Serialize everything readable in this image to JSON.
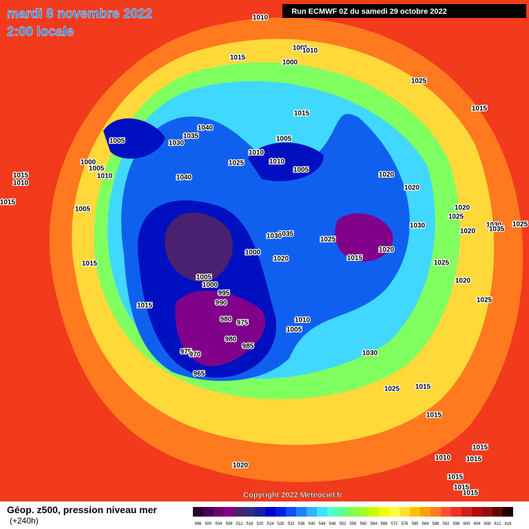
{
  "header": {
    "date": "mardi 8 novembre 2022",
    "time": "2:00 locale",
    "run": "Run ECMWF 0Z du samedi 29 octobre 2022"
  },
  "isobar_labels": [
    "1010",
    "1015",
    "1005",
    "1010",
    "1000",
    "1025",
    "1015",
    "1015",
    "1040",
    "1035",
    "1030",
    "1005",
    "1010",
    "1005",
    "1010",
    "1005",
    "1025",
    "1000",
    "1005",
    "1010",
    "1040",
    "1020",
    "1020",
    "1015",
    "1010",
    "1015",
    "1005",
    "1020",
    "1025",
    "1020",
    "1030",
    "1030",
    "1035",
    "1025",
    "1035",
    "1030",
    "1025",
    "1020",
    "1000",
    "1020",
    "1015",
    "1015",
    "1025",
    "1020",
    "1005",
    "1000",
    "995",
    "990",
    "1015",
    "1025",
    "980",
    "975",
    "1010",
    "1005",
    "980",
    "985",
    "975",
    "970",
    "965",
    "1030",
    "1025",
    "1015",
    "1015",
    "1015",
    "1010",
    "1015",
    "1020",
    "1015",
    "1015",
    "1015"
  ],
  "footer": {
    "copyright": "Copyright 2022 Meteociel.fr",
    "legend_title": "Géop. z500, pression niveau mer",
    "range": "(+240h)"
  },
  "color_scale": {
    "values": [
      496,
      500,
      504,
      508,
      512,
      516,
      520,
      524,
      528,
      532,
      536,
      540,
      544,
      548,
      552,
      556,
      560,
      564,
      568,
      572,
      576,
      580,
      584,
      588,
      592,
      596,
      600,
      604,
      608,
      612,
      616
    ],
    "colors": [
      "#2a0030",
      "#4b0050",
      "#6a006e",
      "#80008a",
      "#4a2070",
      "#2a3080",
      "#1a20a0",
      "#0000c8",
      "#0020e0",
      "#1050f0",
      "#2080ff",
      "#30b0ff",
      "#40e0ff",
      "#50ffd0",
      "#60ff90",
      "#80ff50",
      "#a0ff20",
      "#c8ff00",
      "#f0ff00",
      "#ffff40",
      "#ffe030",
      "#ffc000",
      "#ffa000",
      "#ff8020",
      "#ff5030",
      "#f03020",
      "#d02020",
      "#b01010",
      "#901010",
      "#600808",
      "#200000"
    ]
  }
}
